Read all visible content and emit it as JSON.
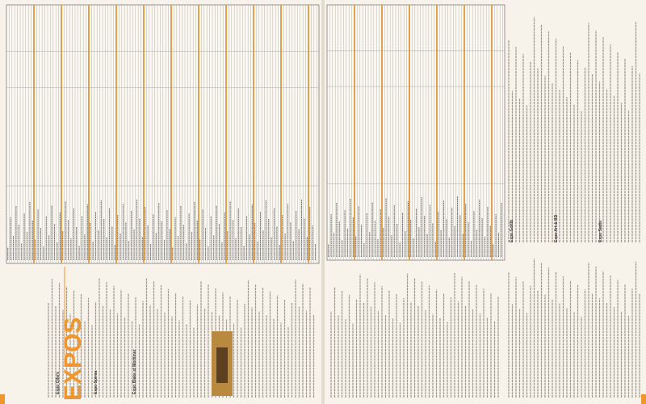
{
  "left_page": {
    "section_title": "EXPOS",
    "entries": [
      "Expo Oilers",
      "Expo Spirou",
      "Expo Blake et Mortimer"
    ]
  },
  "right_page": {
    "entries": [
      "Expo Gotlib",
      "Expo Art & BD",
      "Expo Sadis"
    ]
  }
}
